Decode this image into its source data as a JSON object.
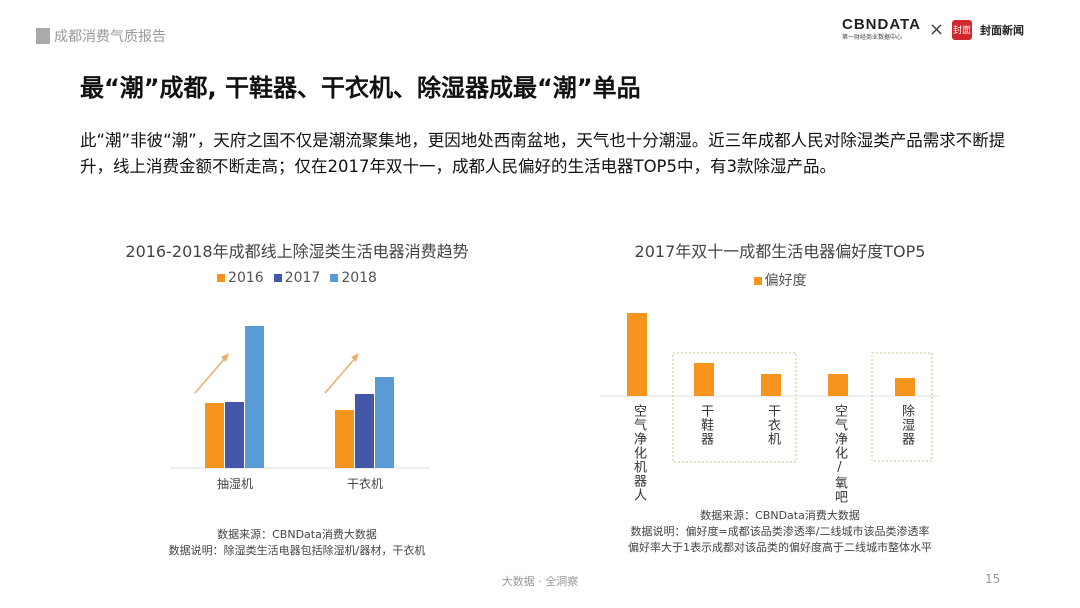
{
  "header": {
    "section": "成都消费气质报告",
    "logo_cbn": "CBNDATA",
    "logo_cbn_sub": "第一财经商业数据中心",
    "logo_x": "×",
    "logo_partner": "封面新闻",
    "logo_partner_mark": "封面"
  },
  "title": "最“潮”成都, 干鞋器、干衣机、除湿器成最“潮”单品",
  "body": "此“潮”非彼“潮”，天府之国不仅是潮流聚集地，更因地处西南盆地，天气也十分潮湿。近三年成都人民对除湿类产品需求不断提升，线上消费金额不断走高；仅在2017年双十一，成都人民偏好的生活电器TOP5中，有3款除湿产品。",
  "chart_data": [
    {
      "type": "bar",
      "title": "2016-2018年成都线上除湿类生活电器消费趋势",
      "categories": [
        "抽湿机",
        "干衣机"
      ],
      "series": [
        {
          "name": "2016",
          "color": "#f7941d",
          "values": [
            65,
            58
          ]
        },
        {
          "name": "2017",
          "color": "#4356a8",
          "values": [
            66,
            74
          ]
        },
        {
          "name": "2018",
          "color": "#5b9bd5",
          "values": [
            142,
            91
          ]
        }
      ],
      "legend": "top",
      "grid": false,
      "note_source": "数据来源：CBNData消费大数据",
      "note_desc": "数据说明：除湿类生活电器包括除湿机/器材，干衣机"
    },
    {
      "type": "bar",
      "title": "2017年双十一成都生活电器偏好度TOP5",
      "categories": [
        "空气净化机器人",
        "干鞋器",
        "干衣机",
        "空气净化/氧吧",
        "除湿器"
      ],
      "series": [
        {
          "name": "偏好度",
          "color": "#f7941d",
          "values": [
            83,
            33,
            22,
            22,
            18
          ]
        }
      ],
      "highlighted": [
        "干鞋器",
        "干衣机",
        "除湿器"
      ],
      "legend": "top",
      "grid": false,
      "note_source": "数据来源：CBNData消费大数据",
      "note_desc": "数据说明：偏好度=成都该品类渗透率/二线城市该品类渗透率",
      "note_desc2": "偏好率大于1表示成都对该品类的偏好度高于二线城市整体水平"
    }
  ],
  "footer": {
    "tagline": "大数据 · 全洞察",
    "page": "15"
  }
}
